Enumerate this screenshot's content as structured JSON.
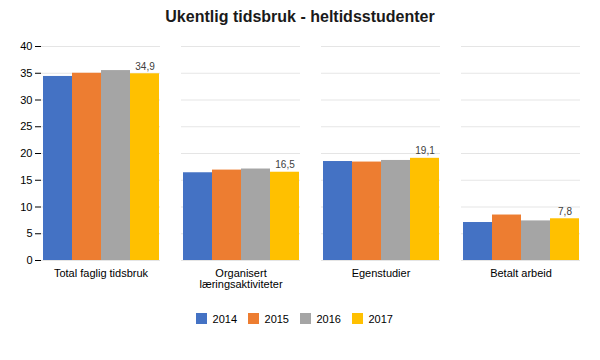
{
  "chart_data": {
    "type": "bar",
    "title": "Ukentlig tidsbruk - heltidsstudenter",
    "categories": [
      "Total faglig tidsbruk",
      "Organisert\nlæringsaktiviteter",
      "Egenstudier",
      "Betalt arbeid"
    ],
    "series": [
      {
        "name": "2014",
        "color": "#4472c4",
        "values": [
          34.4,
          16.4,
          18.5,
          7.1
        ]
      },
      {
        "name": "2015",
        "color": "#ed7d31",
        "values": [
          35.0,
          16.9,
          18.4,
          8.5
        ]
      },
      {
        "name": "2016",
        "color": "#a5a5a5",
        "values": [
          35.5,
          17.1,
          18.7,
          7.4
        ]
      },
      {
        "name": "2017",
        "color": "#ffc000",
        "values": [
          34.9,
          16.5,
          19.1,
          7.8
        ],
        "data_labels": true,
        "value_labels": [
          "34,9",
          "16,5",
          "19,1",
          "7,8"
        ]
      }
    ],
    "ylim": [
      0,
      40
    ],
    "yticks": [
      0,
      5,
      10,
      15,
      20,
      25,
      30,
      35,
      40
    ],
    "grid": true,
    "legend": "bottom"
  }
}
